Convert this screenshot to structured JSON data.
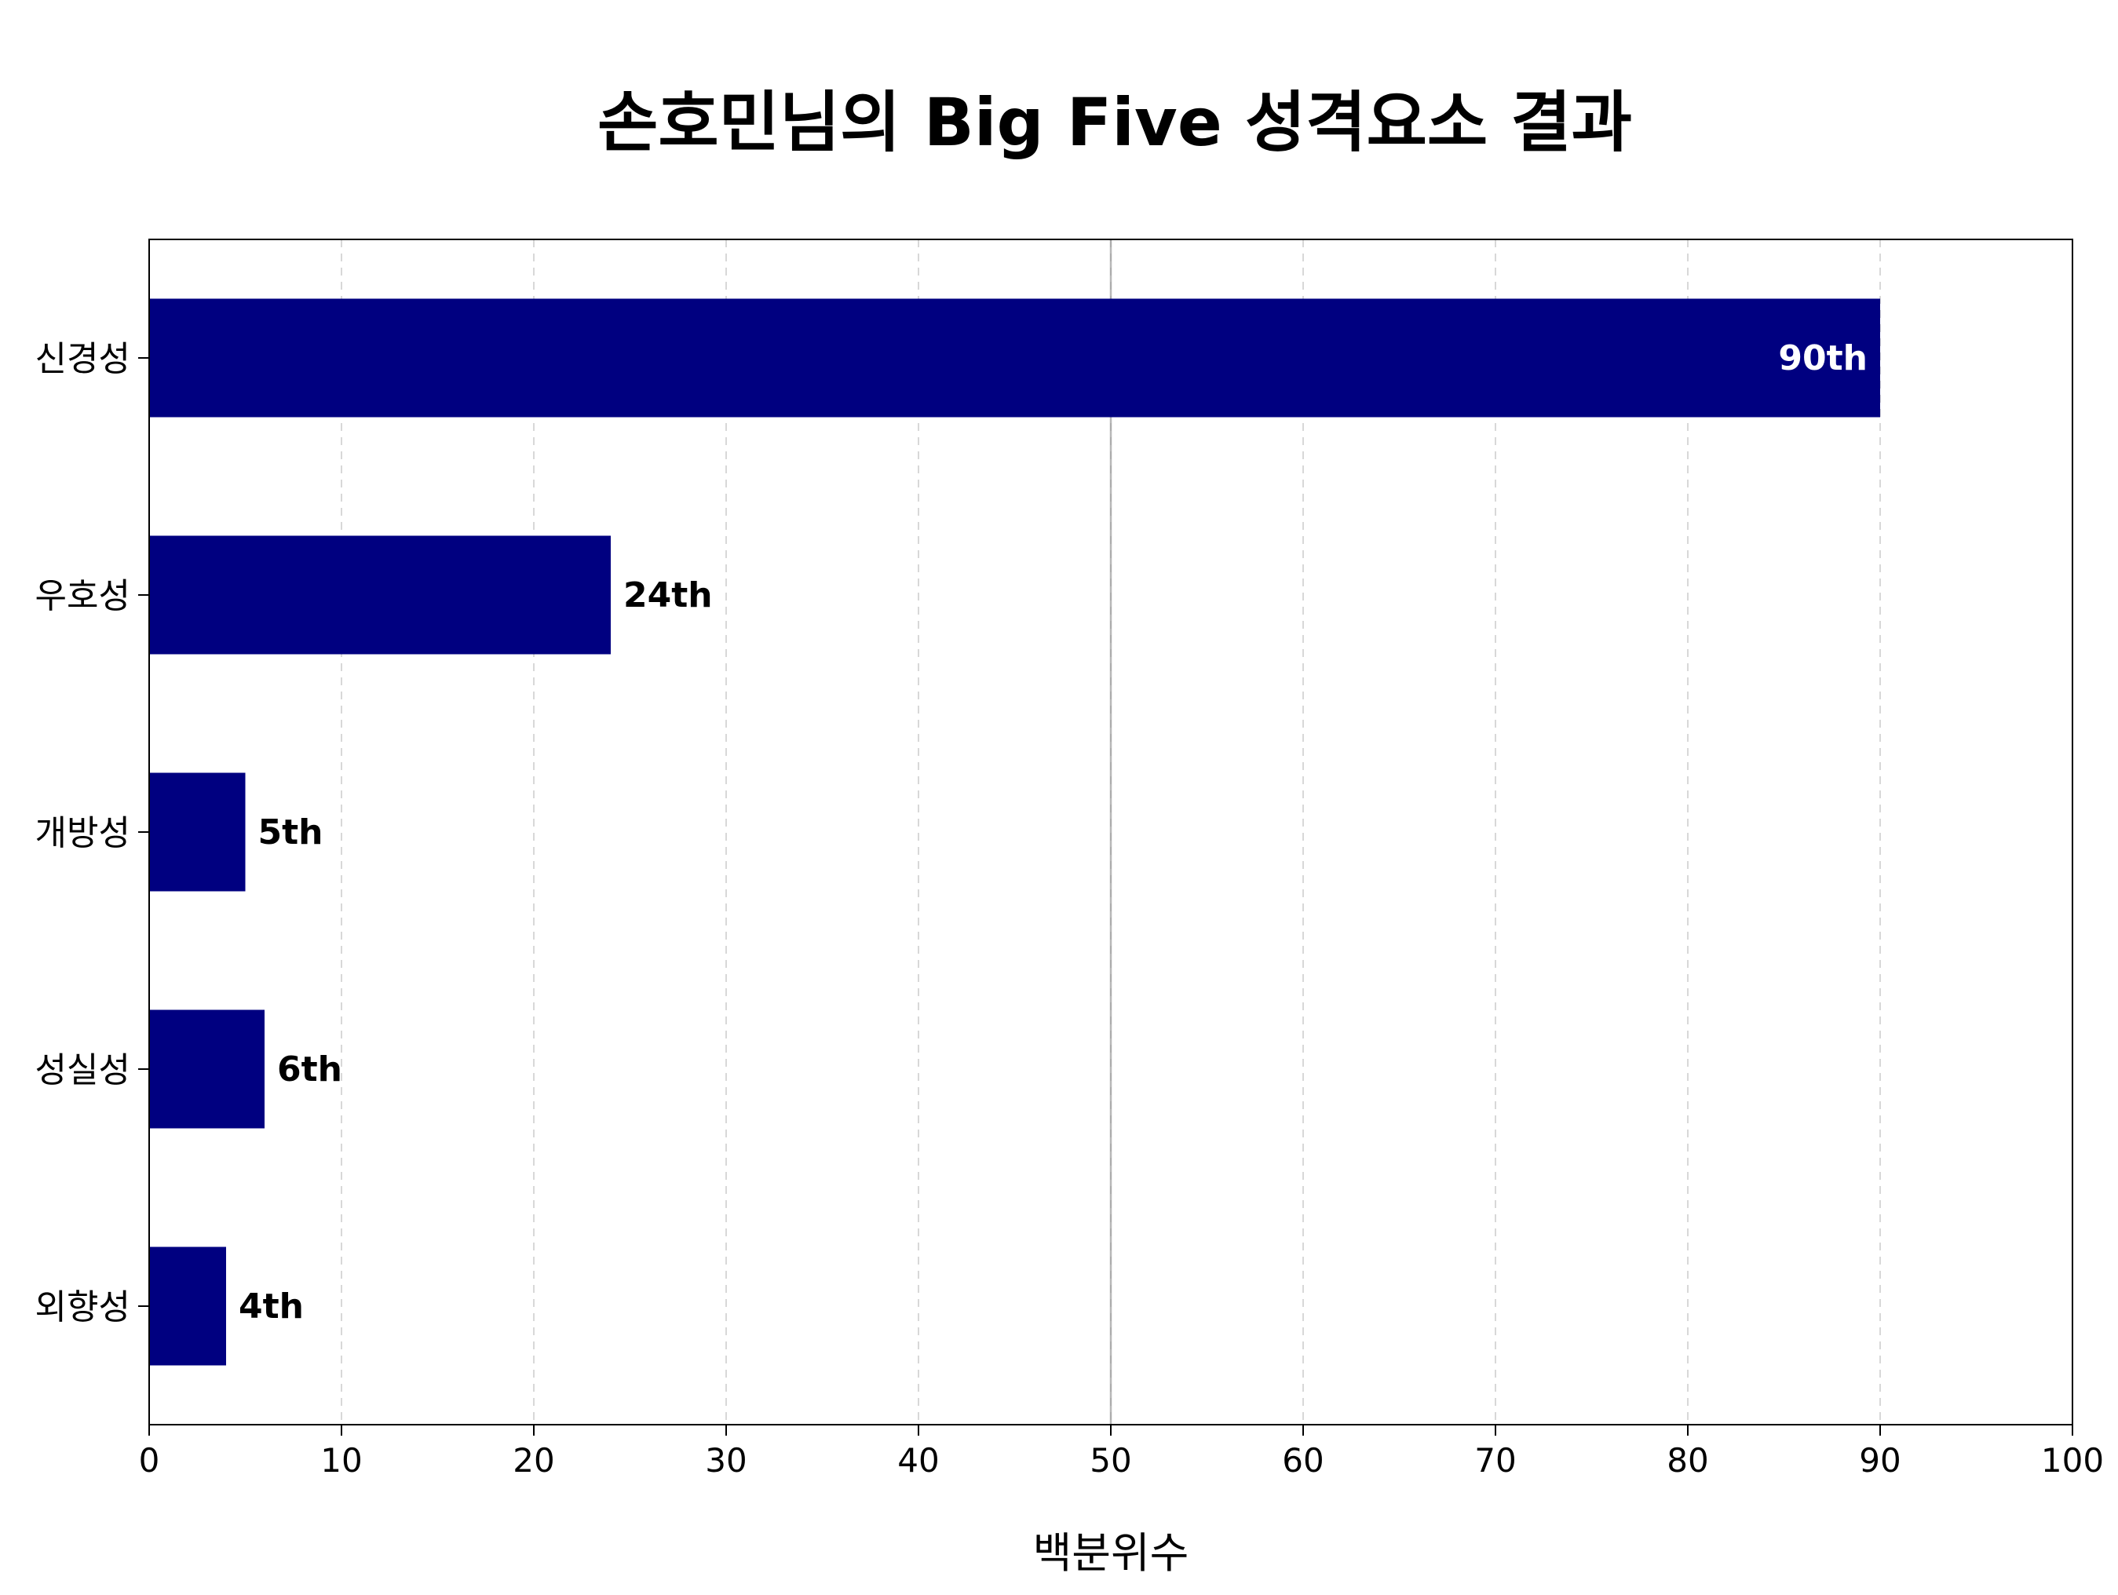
{
  "chart_data": {
    "type": "bar",
    "orientation": "horizontal",
    "title": "손호민님의 Big Five 성격요소 결과",
    "xlabel": "백분위수",
    "ylabel": "",
    "xlim": [
      0,
      100
    ],
    "xticks": [
      0,
      10,
      20,
      30,
      40,
      50,
      60,
      70,
      80,
      90,
      100
    ],
    "categories": [
      "신경성",
      "우호성",
      "개방성",
      "성실성",
      "외향성"
    ],
    "values": [
      90,
      24,
      5,
      6,
      4
    ],
    "value_labels": [
      "90th",
      "24th",
      "5th",
      "6th",
      "4th"
    ],
    "grid": "vertical dashed",
    "reference_line": 50,
    "bar_color": "#000080",
    "label_inside_color": "#ffffff",
    "label_outside_color": "#000000"
  }
}
